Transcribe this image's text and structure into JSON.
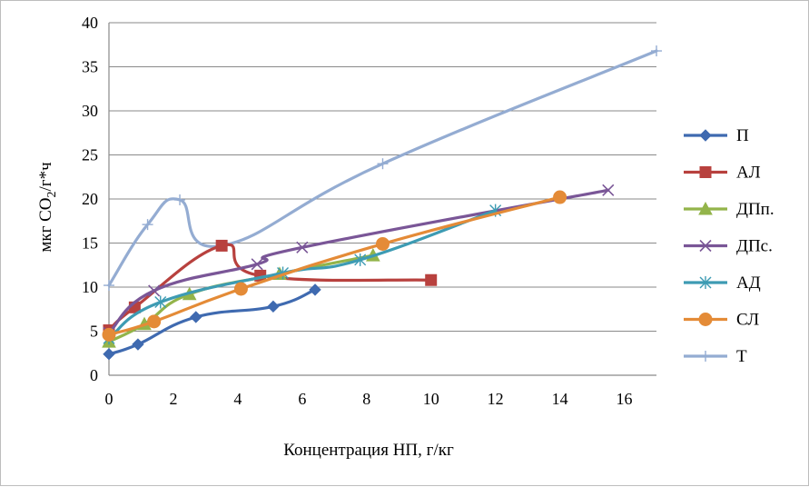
{
  "chart_data": {
    "type": "line",
    "title": "",
    "xlabel": "Концентрация НП, г/кг",
    "ylabel_main": "мкг CO",
    "ylabel_sub": "2",
    "ylabel_tail": "/г*ч",
    "xlim": [
      0,
      17
    ],
    "ylim": [
      0,
      40
    ],
    "xticks": [
      0,
      2,
      4,
      6,
      8,
      10,
      12,
      14,
      16
    ],
    "yticks": [
      0,
      5,
      10,
      15,
      20,
      25,
      30,
      35,
      40
    ],
    "grid": {
      "horizontal": true,
      "vertical": false
    },
    "legend_position": "right",
    "series": [
      {
        "name": "П",
        "color": "#3f6ab0",
        "marker": "diamond",
        "x": [
          0,
          0.9,
          2.7,
          5.1,
          6.4
        ],
        "y": [
          2.4,
          3.5,
          6.6,
          7.8,
          9.7
        ]
      },
      {
        "name": "АЛ",
        "color": "#b8413e",
        "marker": "square",
        "x": [
          0,
          0.8,
          3.5,
          4.7,
          10
        ],
        "y": [
          5.1,
          7.7,
          14.7,
          11.3,
          10.8
        ]
      },
      {
        "name": "ДПп.",
        "color": "#93b44a",
        "marker": "triangle",
        "x": [
          0,
          1.1,
          2.5,
          5.3,
          8.2
        ],
        "y": [
          3.8,
          5.8,
          9.2,
          11.5,
          13.6
        ]
      },
      {
        "name": "ДПс.",
        "color": "#7a5697",
        "marker": "x",
        "x": [
          0,
          1.4,
          4.6,
          6.0,
          15.5
        ],
        "y": [
          4.8,
          9.6,
          12.6,
          14.5,
          21.0
        ]
      },
      {
        "name": "АД",
        "color": "#3d9bb3",
        "marker": "asterisk",
        "x": [
          0,
          1.6,
          5.4,
          7.8,
          12
        ],
        "y": [
          4.2,
          8.3,
          11.6,
          13.1,
          18.7
        ]
      },
      {
        "name": "СЛ",
        "color": "#e48b37",
        "marker": "circle",
        "x": [
          0,
          1.4,
          4.1,
          8.5,
          14
        ],
        "y": [
          4.6,
          6.1,
          9.8,
          14.9,
          20.2
        ]
      },
      {
        "name": "Т",
        "color": "#94acd2",
        "marker": "plus",
        "x": [
          0,
          1.2,
          2.2,
          3.5,
          8.5,
          17
        ],
        "y": [
          10.2,
          17.1,
          19.9,
          14.7,
          24.0,
          36.8
        ]
      }
    ]
  }
}
